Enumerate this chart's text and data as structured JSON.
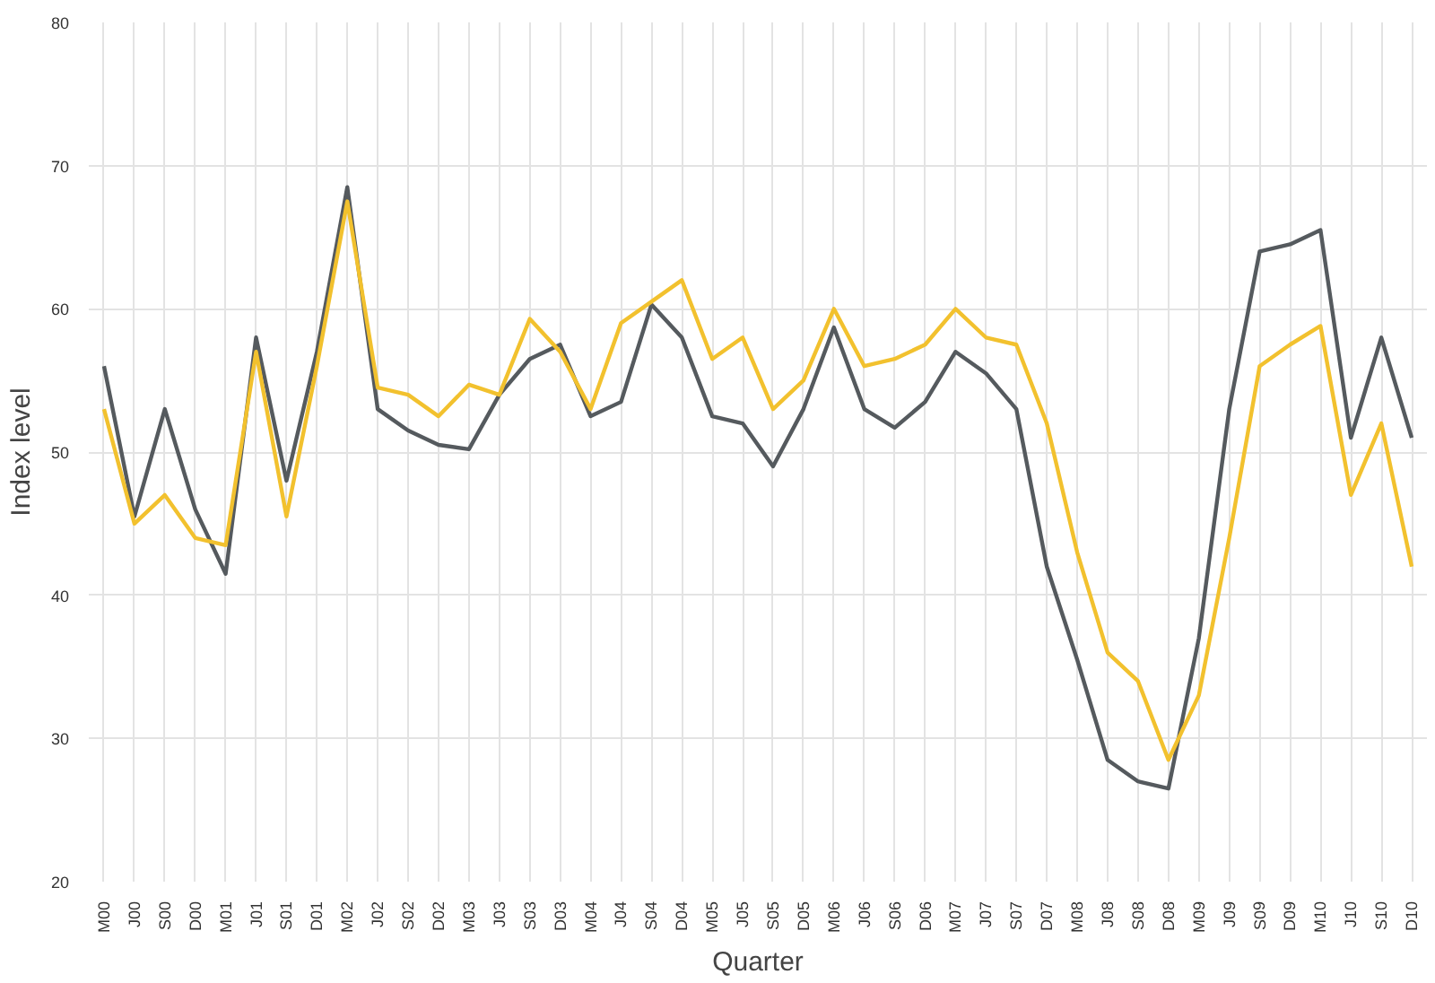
{
  "chart_data": {
    "type": "line",
    "xlabel": "Quarter",
    "ylabel": "Index level",
    "categories": [
      "M00",
      "J00",
      "S00",
      "D00",
      "M01",
      "J01",
      "S01",
      "D01",
      "M02",
      "J02",
      "S02",
      "D02",
      "M03",
      "J03",
      "S03",
      "D03",
      "M04",
      "J04",
      "S04",
      "D04",
      "M05",
      "J05",
      "S05",
      "D05",
      "M06",
      "J06",
      "S06",
      "D06",
      "M07",
      "J07",
      "S07",
      "D07",
      "M08",
      "J08",
      "S08",
      "D08",
      "M09",
      "J09",
      "S09",
      "D09",
      "M10",
      "J10",
      "S10",
      "D10"
    ],
    "series": [
      {
        "color": "#555a5e",
        "values": [
          56,
          45.5,
          53,
          46,
          41.5,
          58,
          48,
          57,
          68.5,
          53,
          51.5,
          50.5,
          50.2,
          54,
          56.5,
          57.5,
          52.5,
          53.5,
          60.3,
          58,
          52.5,
          52,
          49,
          53,
          58.7,
          53,
          51.7,
          53.5,
          57,
          55.5,
          53,
          42,
          35.5,
          28.5,
          27,
          26.5,
          37,
          53,
          64,
          64.5,
          65.5,
          51,
          58,
          51
        ]
      },
      {
        "color": "#f2c12e",
        "values": [
          53,
          45,
          47,
          44,
          43.5,
          57,
          45.5,
          56,
          67.5,
          54.5,
          54,
          52.5,
          54.7,
          54,
          59.3,
          57,
          53,
          59,
          60.5,
          62,
          56.5,
          58,
          53,
          55,
          60,
          56,
          56.5,
          57.5,
          60,
          58,
          57.5,
          52,
          43,
          36,
          34,
          28.5,
          33,
          44,
          56,
          57.5,
          58.8,
          47,
          52,
          42
        ]
      }
    ],
    "ylim": [
      20,
      80
    ],
    "yticks": [
      20,
      30,
      40,
      50,
      60,
      70,
      80
    ],
    "grid": true,
    "marker": "none",
    "line_style": "solid"
  }
}
